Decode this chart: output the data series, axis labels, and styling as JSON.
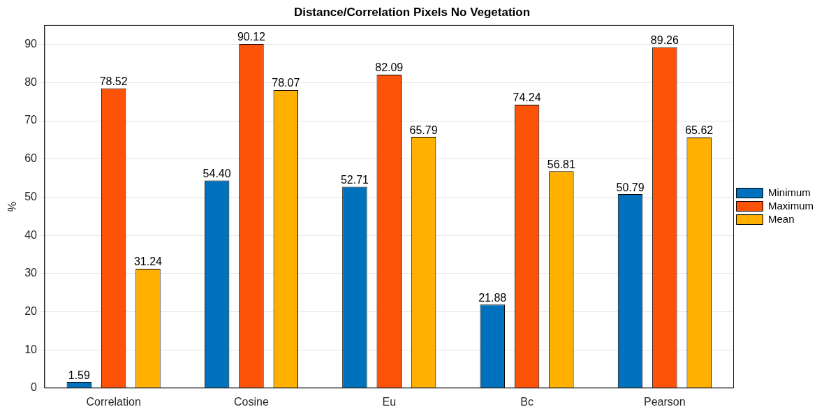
{
  "chart_data": {
    "type": "bar",
    "title": "Distance/Correlation Pixels No Vegetation",
    "ylabel": "%",
    "categories": [
      "Correlation",
      "Cosine",
      "Eu",
      "Bc",
      "Pearson"
    ],
    "series": [
      {
        "name": "Minimum",
        "color": "#0072bd",
        "values": [
          1.59,
          54.4,
          52.71,
          21.88,
          50.79
        ],
        "value_labels": [
          "1.59",
          "54.40",
          "52.71",
          "21.88",
          "50.79"
        ]
      },
      {
        "name": "Maximum",
        "color": "#fc5309",
        "values": [
          78.52,
          90.12,
          82.09,
          74.24,
          89.26
        ],
        "value_labels": [
          "78.52",
          "90.12",
          "82.09",
          "74.24",
          "89.26"
        ]
      },
      {
        "name": "Mean",
        "color": "#ffb000",
        "values": [
          31.24,
          78.07,
          65.79,
          56.81,
          65.62
        ],
        "value_labels": [
          "31.24",
          "78.07",
          "65.79",
          "56.81",
          "65.62"
        ]
      }
    ],
    "ylim": [
      0,
      95
    ],
    "yticks": [
      0,
      10,
      20,
      30,
      40,
      50,
      60,
      70,
      80,
      90
    ],
    "grid": "y",
    "legend": "right"
  }
}
